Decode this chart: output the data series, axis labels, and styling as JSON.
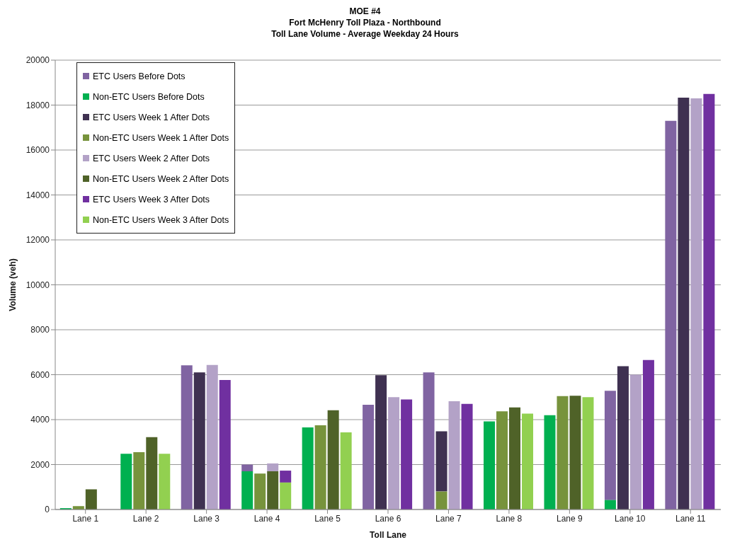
{
  "chart_data": {
    "type": "bar",
    "title": "MOE #4",
    "subtitle": "Fort McHenry Toll Plaza - Northbound\nToll Lane Volume - Average Weekday 24 Hours",
    "xlabel": "Toll Lane",
    "ylabel": "Volume (veh)",
    "categories": [
      "Lane 1",
      "Lane 2",
      "Lane 3",
      "Lane 4",
      "Lane 5",
      "Lane 6",
      "Lane 7",
      "Lane 8",
      "Lane 9",
      "Lane 10",
      "Lane 11"
    ],
    "series": [
      {
        "name": "ETC Users Before Dots",
        "color": "#8064a2",
        "values": [
          null,
          null,
          6420,
          300,
          null,
          4660,
          6100,
          null,
          null,
          4860,
          17300
        ],
        "base": [
          null,
          null,
          0,
          1700,
          null,
          0,
          0,
          null,
          null,
          420,
          0
        ]
      },
      {
        "name": "Non-ETC Users Before Dots",
        "color": "#00b050",
        "values": [
          60,
          2480,
          null,
          1700,
          3650,
          null,
          null,
          3920,
          4200,
          420,
          null
        ]
      },
      {
        "name": "ETC Users Week 1 After Dots",
        "color": "#3f3151",
        "values": [
          null,
          null,
          6100,
          null,
          null,
          5980,
          2680,
          null,
          null,
          6380,
          18330
        ],
        "base": [
          null,
          null,
          0,
          null,
          null,
          0,
          800,
          null,
          null,
          0,
          0
        ]
      },
      {
        "name": "Non-ETC Users Week 1 After Dots",
        "color": "#77933c",
        "values": [
          150,
          2550,
          null,
          1600,
          3750,
          null,
          800,
          4370,
          5050,
          null,
          null
        ]
      },
      {
        "name": "ETC Users Week 2 After Dots",
        "color": "#b3a2c7",
        "values": [
          null,
          null,
          6430,
          350,
          null,
          5000,
          4820,
          null,
          null,
          6000,
          18300
        ],
        "base": [
          null,
          null,
          0,
          1700,
          null,
          0,
          0,
          null,
          null,
          0,
          0
        ]
      },
      {
        "name": "Non-ETC Users Week 2 After Dots",
        "color": "#4f6228",
        "values": [
          900,
          3220,
          null,
          1700,
          4420,
          null,
          null,
          4540,
          5060,
          null,
          null
        ]
      },
      {
        "name": "ETC Users Week 3 After Dots",
        "color": "#7030a0",
        "values": [
          null,
          null,
          5760,
          530,
          null,
          4900,
          4700,
          null,
          null,
          6650,
          18500
        ],
        "base": [
          null,
          null,
          0,
          1200,
          null,
          0,
          0,
          null,
          null,
          0,
          0
        ]
      },
      {
        "name": "Non-ETC Users Week 3 After Dots",
        "color": "#92d050",
        "values": [
          null,
          2480,
          null,
          1200,
          3430,
          null,
          null,
          4270,
          5000,
          null,
          null
        ]
      }
    ],
    "ylim": [
      0,
      20000
    ],
    "yticks": [
      0,
      2000,
      4000,
      6000,
      8000,
      10000,
      12000,
      14000,
      16000,
      18000,
      20000
    ],
    "grid": "y",
    "legend": "top left"
  }
}
